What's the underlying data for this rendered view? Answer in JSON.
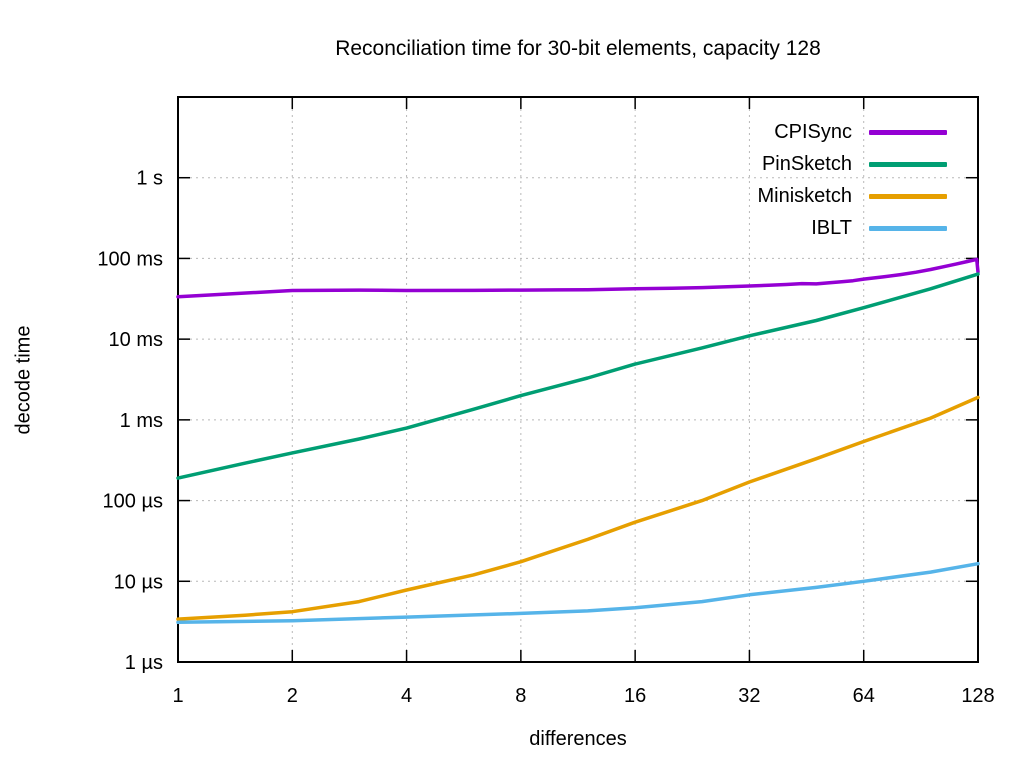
{
  "chart_data": {
    "type": "line",
    "title": "Reconciliation time for 30-bit elements, capacity 128",
    "xlabel": "differences",
    "ylabel": "decode time",
    "x_scale": "log2",
    "y_scale": "log10",
    "grid": true,
    "legend_position": "top-right-inside",
    "x_range": [
      1,
      128
    ],
    "y_range_us": [
      1,
      10000000
    ],
    "x_ticks": [
      {
        "v": 1,
        "label": "1"
      },
      {
        "v": 2,
        "label": "2"
      },
      {
        "v": 4,
        "label": "4"
      },
      {
        "v": 8,
        "label": "8"
      },
      {
        "v": 16,
        "label": "16"
      },
      {
        "v": 32,
        "label": "32"
      },
      {
        "v": 64,
        "label": "64"
      },
      {
        "v": 128,
        "label": "128"
      }
    ],
    "y_ticks": [
      {
        "v": 1,
        "label": "1 µs"
      },
      {
        "v": 10,
        "label": "10 µs"
      },
      {
        "v": 100,
        "label": "100 µs"
      },
      {
        "v": 1000,
        "label": "1 ms"
      },
      {
        "v": 10000,
        "label": "10 ms"
      },
      {
        "v": 100000,
        "label": "100 ms"
      },
      {
        "v": 1000000,
        "label": "1 s"
      }
    ],
    "series": [
      {
        "name": "CPISync",
        "color": "#9400d3",
        "points_us": [
          [
            1,
            33500
          ],
          [
            2,
            40000
          ],
          [
            3,
            40500
          ],
          [
            4,
            40000
          ],
          [
            6,
            40200
          ],
          [
            8,
            40500
          ],
          [
            10,
            40800
          ],
          [
            12,
            41000
          ],
          [
            16,
            42000
          ],
          [
            20,
            42800
          ],
          [
            24,
            43500
          ],
          [
            28,
            44500
          ],
          [
            32,
            45500
          ],
          [
            36,
            46500
          ],
          [
            40,
            47500
          ],
          [
            44,
            48800
          ],
          [
            48,
            48300
          ],
          [
            52,
            50000
          ],
          [
            56,
            51500
          ],
          [
            60,
            53000
          ],
          [
            64,
            55500
          ],
          [
            72,
            59000
          ],
          [
            80,
            63000
          ],
          [
            88,
            67500
          ],
          [
            96,
            73000
          ],
          [
            104,
            79000
          ],
          [
            112,
            85000
          ],
          [
            120,
            91500
          ],
          [
            126,
            96500
          ],
          [
            127,
            97500
          ],
          [
            128,
            68000
          ]
        ]
      },
      {
        "name": "PinSketch",
        "color": "#009e73",
        "points_us": [
          [
            1,
            190
          ],
          [
            1.5,
            290
          ],
          [
            2,
            390
          ],
          [
            3,
            580
          ],
          [
            4,
            790
          ],
          [
            6,
            1350
          ],
          [
            8,
            2000
          ],
          [
            12,
            3300
          ],
          [
            16,
            4900
          ],
          [
            24,
            7800
          ],
          [
            32,
            11000
          ],
          [
            48,
            17000
          ],
          [
            64,
            24500
          ],
          [
            96,
            42000
          ],
          [
            128,
            64000
          ]
        ]
      },
      {
        "name": "Minisketch",
        "color": "#e69f00",
        "points_us": [
          [
            1,
            3.4
          ],
          [
            1.5,
            3.8
          ],
          [
            2,
            4.2
          ],
          [
            3,
            5.6
          ],
          [
            4,
            7.8
          ],
          [
            6,
            12
          ],
          [
            8,
            17.5
          ],
          [
            12,
            33
          ],
          [
            16,
            54
          ],
          [
            24,
            100
          ],
          [
            32,
            170
          ],
          [
            48,
            330
          ],
          [
            64,
            540
          ],
          [
            96,
            1050
          ],
          [
            128,
            1900
          ]
        ]
      },
      {
        "name": "IBLT",
        "color": "#56b4e9",
        "points_us": [
          [
            1,
            3.1
          ],
          [
            2,
            3.25
          ],
          [
            4,
            3.6
          ],
          [
            8,
            4.0
          ],
          [
            12,
            4.3
          ],
          [
            16,
            4.7
          ],
          [
            24,
            5.6
          ],
          [
            32,
            6.8
          ],
          [
            48,
            8.4
          ],
          [
            64,
            10
          ],
          [
            96,
            13
          ],
          [
            128,
            16.5
          ]
        ]
      }
    ],
    "style": {
      "grid_color": "#b8b8b8",
      "border_color": "#000000",
      "line_width": 3.5
    }
  }
}
